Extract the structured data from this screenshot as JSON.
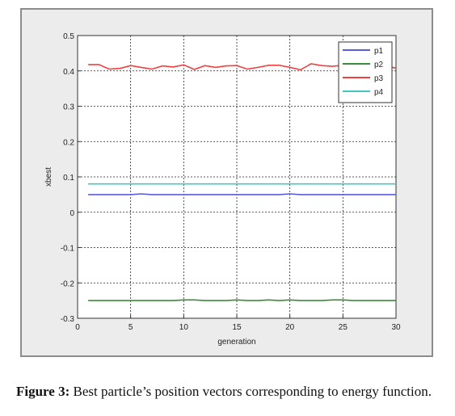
{
  "caption": {
    "label": "Figure 3:",
    "text": " Best particle’s position vectors corresponding to energy function."
  },
  "chart_data": {
    "type": "line",
    "xlabel": "generation",
    "ylabel": "xbest",
    "xlim": [
      0,
      30
    ],
    "ylim": [
      -0.3,
      0.5
    ],
    "xticks": [
      0,
      5,
      10,
      15,
      20,
      25,
      30
    ],
    "yticks": [
      -0.3,
      -0.2,
      -0.1,
      0,
      0.1,
      0.2,
      0.3,
      0.4,
      0.5
    ],
    "grid": true,
    "legend_position": "top-right",
    "x": [
      1,
      2,
      3,
      4,
      5,
      6,
      7,
      8,
      9,
      10,
      11,
      12,
      13,
      14,
      15,
      16,
      17,
      18,
      19,
      20,
      21,
      22,
      23,
      24,
      25,
      26,
      27,
      28,
      29,
      30
    ],
    "series": [
      {
        "name": "p1",
        "color": "#5a5ae0",
        "values": [
          0.05,
          0.05,
          0.05,
          0.05,
          0.05,
          0.052,
          0.05,
          0.05,
          0.05,
          0.05,
          0.05,
          0.05,
          0.05,
          0.05,
          0.05,
          0.05,
          0.05,
          0.05,
          0.05,
          0.052,
          0.05,
          0.05,
          0.05,
          0.05,
          0.05,
          0.05,
          0.05,
          0.05,
          0.05,
          0.05
        ]
      },
      {
        "name": "p2",
        "color": "#3c8a3c",
        "values": [
          -0.25,
          -0.25,
          -0.25,
          -0.25,
          -0.25,
          -0.25,
          -0.25,
          -0.25,
          -0.25,
          -0.248,
          -0.248,
          -0.25,
          -0.25,
          -0.25,
          -0.248,
          -0.25,
          -0.25,
          -0.248,
          -0.25,
          -0.248,
          -0.25,
          -0.25,
          -0.25,
          -0.248,
          -0.248,
          -0.25,
          -0.25,
          -0.25,
          -0.25,
          -0.25
        ]
      },
      {
        "name": "p3",
        "color": "#f04040",
        "values": [
          0.418,
          0.418,
          0.405,
          0.407,
          0.415,
          0.41,
          0.405,
          0.414,
          0.411,
          0.417,
          0.404,
          0.415,
          0.41,
          0.414,
          0.415,
          0.405,
          0.41,
          0.416,
          0.416,
          0.41,
          0.403,
          0.42,
          0.415,
          0.413,
          0.416,
          0.414,
          0.415,
          0.416,
          0.414,
          0.408
        ]
      },
      {
        "name": "p4",
        "color": "#40c8c0",
        "values": [
          0.08,
          0.08,
          0.08,
          0.08,
          0.08,
          0.08,
          0.08,
          0.08,
          0.08,
          0.08,
          0.08,
          0.08,
          0.08,
          0.08,
          0.08,
          0.08,
          0.08,
          0.08,
          0.08,
          0.08,
          0.08,
          0.08,
          0.08,
          0.08,
          0.08,
          0.08,
          0.08,
          0.08,
          0.08,
          0.08
        ]
      }
    ]
  }
}
